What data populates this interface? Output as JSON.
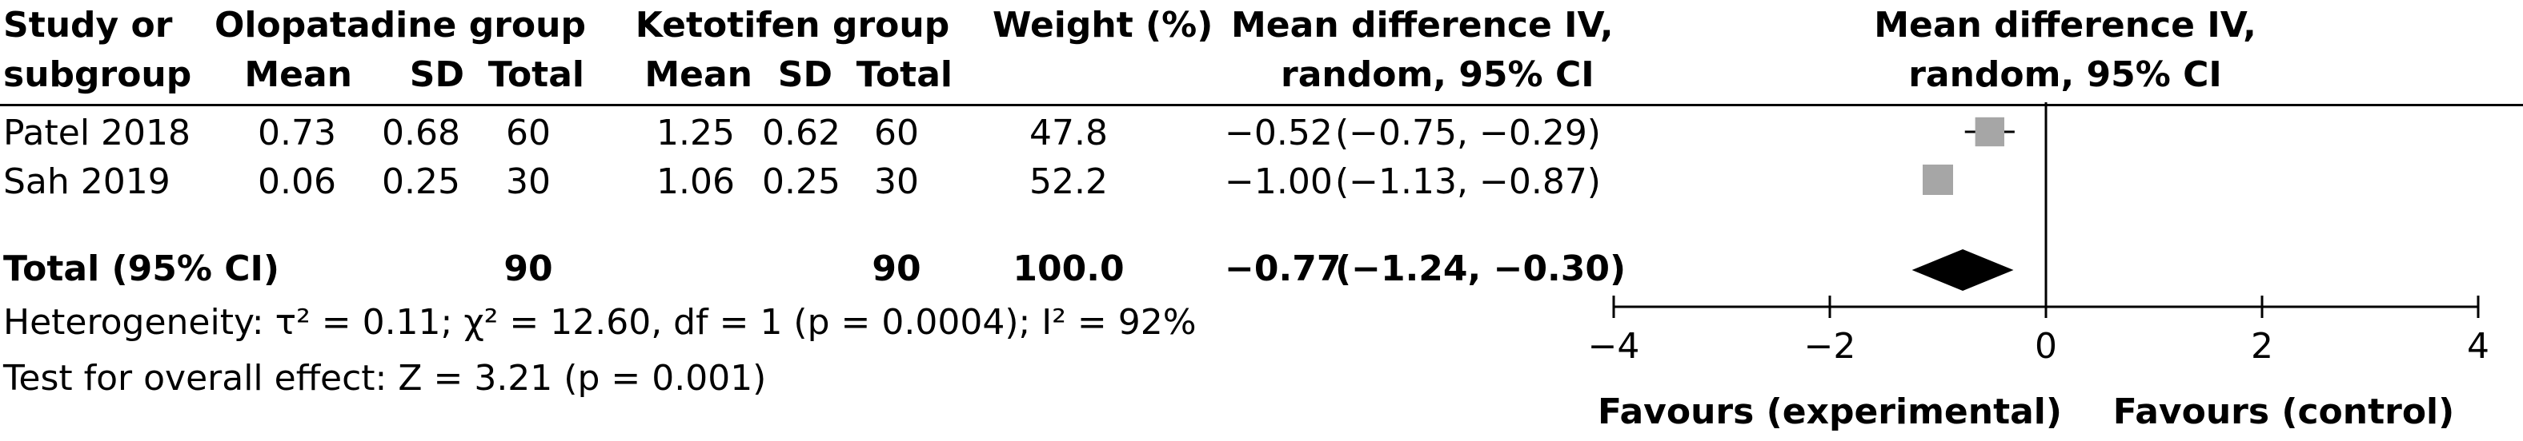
{
  "header": {
    "study_l1": "Study or",
    "study_l2": "subgroup",
    "group1": "Olopatadine group",
    "group2": "Ketotifen group",
    "weight": "Weight (%)",
    "md_l1": "Mean difference IV,",
    "md_l2": "random, 95% CI",
    "sub_mean": "Mean",
    "sub_sd": "SD",
    "sub_total": "Total",
    "plot_l1": "Mean difference IV,",
    "plot_l2": "random, 95% CI"
  },
  "studies": [
    {
      "name": "Patel 2018",
      "m1": "0.73",
      "sd1": "0.68",
      "n1": "60",
      "m2": "1.25",
      "sd2": "0.62",
      "n2": "60",
      "weight": "47.8",
      "md": "−0.52",
      "ci": "(−0.75, −0.29)"
    },
    {
      "name": "Sah 2019",
      "m1": "0.06",
      "sd1": "0.25",
      "n1": "30",
      "m2": "1.06",
      "sd2": "0.25",
      "n2": "30",
      "weight": "52.2",
      "md": "−1.00",
      "ci": "(−1.13, −0.87)"
    }
  ],
  "total": {
    "label": "Total (95% CI)",
    "n1": "90",
    "n2": "90",
    "weight": "100.0",
    "md": "−0.77",
    "ci": "(−1.24, −0.30)"
  },
  "heterogeneity_text": "Heterogeneity: τ² = 0.11; χ² = 12.60, df = 1 (p = 0.0004); I² = 92%",
  "overall_text": "Test for overall effect: Z = 3.21 (p = 0.001)",
  "chart_data": {
    "type": "forest",
    "xlim": [
      -4,
      4
    ],
    "xticks": [
      -4,
      -2,
      0,
      2,
      4
    ],
    "xtick_labels": [
      "−4",
      "−2",
      "0",
      "2",
      "4"
    ],
    "xlabel_left": "Favours (experimental)",
    "xlabel_right": "Favours (control)",
    "studies": [
      {
        "name": "Patel 2018",
        "estimate": -0.52,
        "ci_low": -0.75,
        "ci_high": -0.29,
        "weight": 47.8
      },
      {
        "name": "Sah 2019",
        "estimate": -1.0,
        "ci_low": -1.13,
        "ci_high": -0.87,
        "weight": 52.2
      }
    ],
    "pooled": {
      "estimate": -0.77,
      "ci_low": -1.24,
      "ci_high": -0.3
    },
    "study_marker_color": "#a6a6a6",
    "pooled_marker_color": "#000000"
  }
}
